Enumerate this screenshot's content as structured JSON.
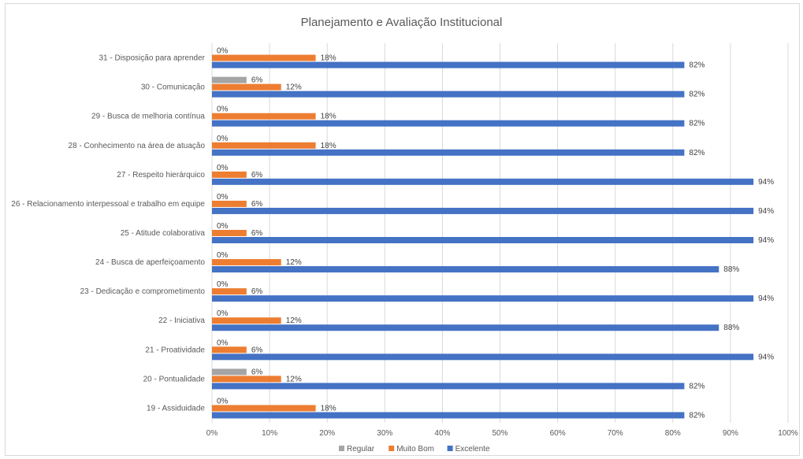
{
  "chart_data": {
    "type": "bar",
    "orientation": "horizontal",
    "title": "Planejamento e Avaliação Institucional",
    "categories": [
      "31 - Disposição para aprender",
      "30 - Comunicação",
      "29 - Busca de melhoria contínua",
      "28 - Conhecimento na área de atuação",
      "27 - Respeito hierárquico",
      "26 - Relacionamento interpessoal e trabalho em equipe",
      "25 - Atitude colaborativa",
      "24 - Busca de aperfeiçoamento",
      "23 - Dedicação e comprometimento",
      "22 - Iniciativa",
      "21 - Proatividade",
      "20 - Pontualidade",
      "19 - Assiduidade"
    ],
    "series": [
      {
        "name": "Regular",
        "color": "#a5a5a5",
        "values": [
          0,
          6,
          0,
          0,
          0,
          0,
          0,
          0,
          0,
          0,
          0,
          6,
          0
        ]
      },
      {
        "name": "Muito Bom",
        "color": "#ed7d31",
        "values": [
          18,
          12,
          18,
          18,
          6,
          6,
          6,
          12,
          6,
          12,
          6,
          12,
          18
        ]
      },
      {
        "name": "Excelente",
        "color": "#4472c4",
        "values": [
          82,
          82,
          82,
          82,
          94,
          94,
          94,
          88,
          94,
          88,
          94,
          82,
          82
        ]
      }
    ],
    "xlim": [
      0,
      100
    ],
    "x_ticks": [
      "0%",
      "10%",
      "20%",
      "30%",
      "40%",
      "50%",
      "60%",
      "70%",
      "80%",
      "90%",
      "100%"
    ],
    "value_suffix": "%",
    "grid": true,
    "legend_position": "bottom"
  }
}
